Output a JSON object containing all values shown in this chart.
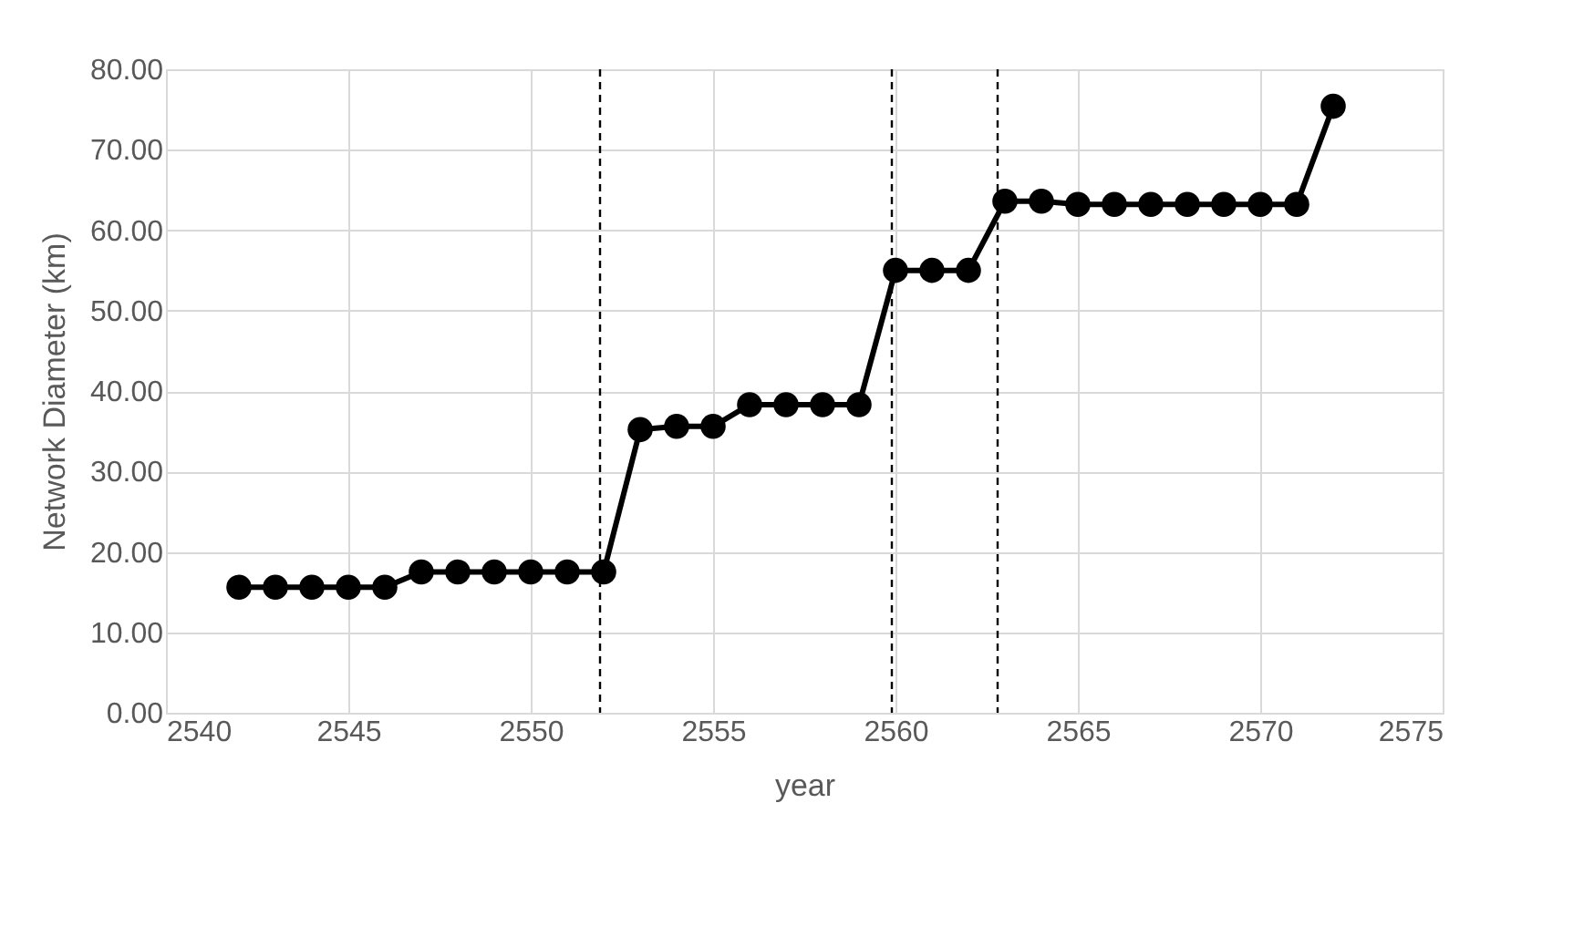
{
  "chart_data": {
    "type": "line",
    "xlabel": "year",
    "ylabel": "Network Diameter (km)",
    "x": [
      2542,
      2543,
      2544,
      2545,
      2546,
      2547,
      2548,
      2549,
      2550,
      2551,
      2552,
      2553,
      2554,
      2555,
      2556,
      2557,
      2558,
      2559,
      2560,
      2561,
      2562,
      2563,
      2564,
      2565,
      2566,
      2567,
      2568,
      2569,
      2570,
      2571,
      2572
    ],
    "series": [
      {
        "color": "#000000",
        "values": [
          15.6,
          15.6,
          15.6,
          15.6,
          15.6,
          17.5,
          17.5,
          17.5,
          17.5,
          17.5,
          17.5,
          35.2,
          35.6,
          35.6,
          38.3,
          38.3,
          38.3,
          38.3,
          55.0,
          55.0,
          55.0,
          63.6,
          63.6,
          63.2,
          63.2,
          63.2,
          63.2,
          63.2,
          63.2,
          63.2,
          75.4
        ]
      }
    ],
    "xlim": [
      2540,
      2575
    ],
    "xticks": [
      2540,
      2545,
      2550,
      2555,
      2560,
      2565,
      2570,
      2575
    ],
    "ylim": [
      0,
      80
    ],
    "yticks": [
      {
        "value": 0,
        "label": "0.00"
      },
      {
        "value": 10,
        "label": "10.00"
      },
      {
        "value": 20,
        "label": "20.00"
      },
      {
        "value": 30,
        "label": "30.00"
      },
      {
        "value": 40,
        "label": "40.00"
      },
      {
        "value": 50,
        "label": "50.00"
      },
      {
        "value": 60,
        "label": "60.00"
      },
      {
        "value": 70,
        "label": "70.00"
      },
      {
        "value": 80,
        "label": "80.00"
      }
    ],
    "ref_lines": [
      {
        "axis": "x",
        "value": 2551.9,
        "color": "#000000",
        "line_style": "dashed"
      },
      {
        "axis": "x",
        "value": 2559.9,
        "color": "#000000",
        "line_style": "dashed"
      },
      {
        "axis": "x",
        "value": 2562.8,
        "color": "#000000",
        "line_style": "dashed"
      }
    ],
    "grid": true,
    "marker": "circle",
    "line_style": "solid"
  }
}
